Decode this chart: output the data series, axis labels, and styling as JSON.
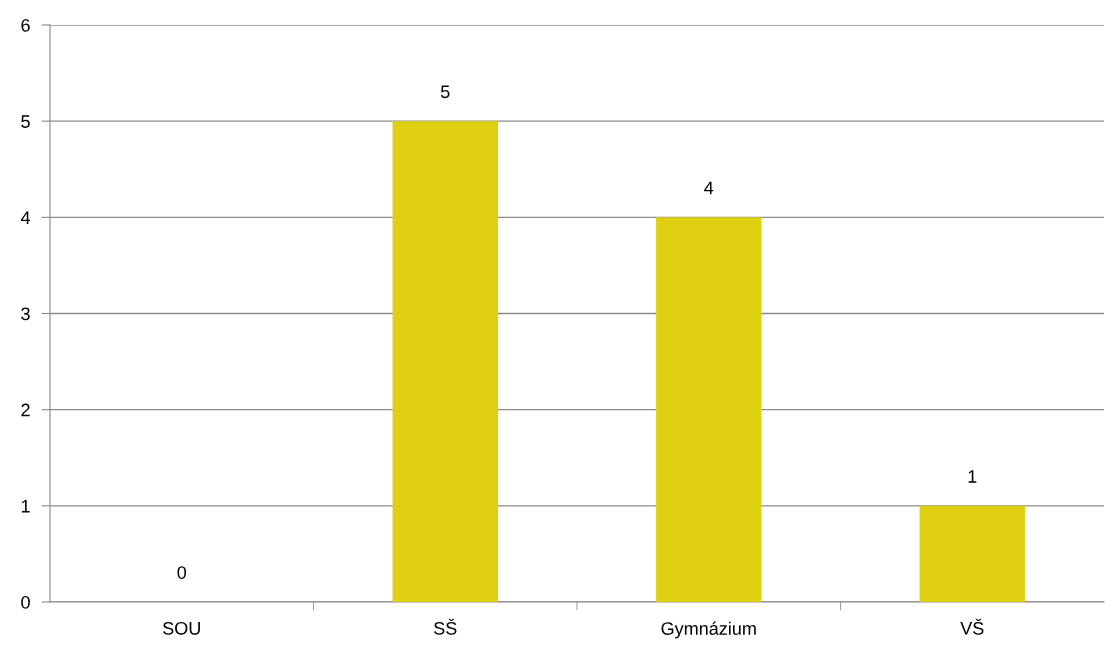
{
  "chart_data": {
    "type": "bar",
    "categories": [
      "SOU",
      "SŠ",
      "Gymnázium",
      "VŠ"
    ],
    "values": [
      0,
      5,
      4,
      1
    ],
    "color": "#dfcf12",
    "ylim": [
      0,
      6
    ],
    "yticks": [
      0,
      1,
      2,
      3,
      4,
      5,
      6
    ],
    "grid": "y",
    "data_labels": true
  }
}
